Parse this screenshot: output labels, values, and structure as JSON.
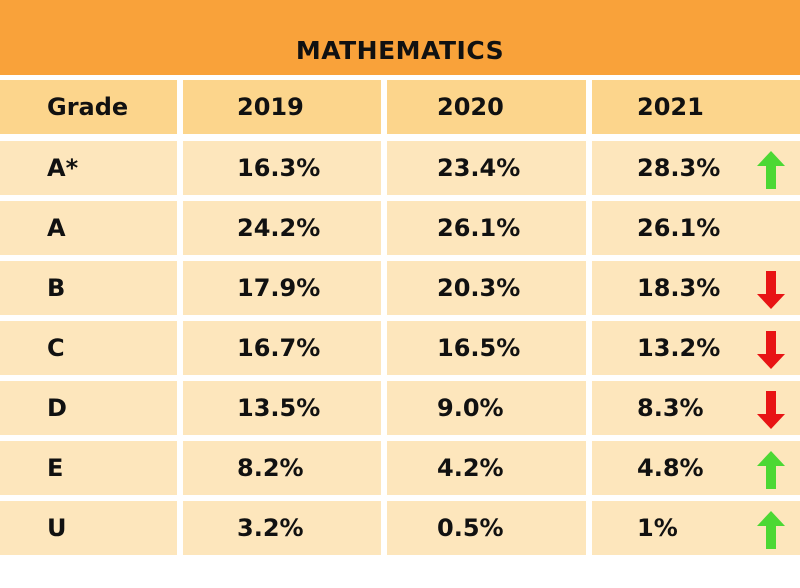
{
  "title": "MATHEMATICS",
  "colors": {
    "title_bg": "#F9A23A",
    "header_bg": "#FCD58C",
    "row_bg": "#FDE6BC",
    "up": "#4CD834",
    "down": "#E81414"
  },
  "chart_data": {
    "type": "table",
    "columns": [
      "Grade",
      "2019",
      "2020",
      "2021"
    ],
    "rows": [
      {
        "grade": "A*",
        "y2019": "16.3%",
        "y2020": "23.4%",
        "y2021": "28.3%",
        "trend": "up"
      },
      {
        "grade": "A",
        "y2019": "24.2%",
        "y2020": "26.1%",
        "y2021": "26.1%",
        "trend": "none"
      },
      {
        "grade": "B",
        "y2019": "17.9%",
        "y2020": "20.3%",
        "y2021": "18.3%",
        "trend": "down"
      },
      {
        "grade": "C",
        "y2019": "16.7%",
        "y2020": "16.5%",
        "y2021": "13.2%",
        "trend": "down"
      },
      {
        "grade": "D",
        "y2019": "13.5%",
        "y2020": "9.0%",
        "y2021": "8.3%",
        "trend": "down"
      },
      {
        "grade": "E",
        "y2019": "8.2%",
        "y2020": "4.2%",
        "y2021": "4.8%",
        "trend": "up"
      },
      {
        "grade": "U",
        "y2019": "3.2%",
        "y2020": "0.5%",
        "y2021": "1%",
        "trend": "up"
      }
    ]
  }
}
